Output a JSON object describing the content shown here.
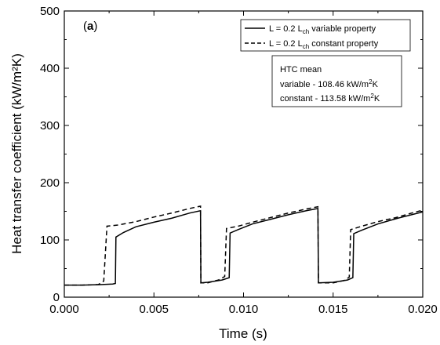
{
  "chart_data": {
    "type": "line",
    "panel_label_open": "(",
    "panel_label_letter": "a",
    "panel_label_close": ")",
    "xlabel": "Time (s)",
    "ylabel": "Heat transfer coefficient (kW/m²K)",
    "xlim": [
      0.0,
      0.02
    ],
    "ylim": [
      0,
      500
    ],
    "xticks": [
      0.0,
      0.005,
      0.01,
      0.015,
      0.02
    ],
    "xtick_labels": [
      "0.000",
      "0.005",
      "0.010",
      "0.015",
      "0.020"
    ],
    "yticks": [
      0,
      100,
      200,
      300,
      400,
      500
    ],
    "ytick_labels": [
      "0",
      "100",
      "200",
      "300",
      "400",
      "500"
    ],
    "grid": false,
    "legend_position": "top-right",
    "legend": [
      {
        "style": "solid",
        "prefix": "L = 0.2 L",
        "sub": "ch",
        "suffix": " variable property"
      },
      {
        "style": "dashed",
        "prefix": "L = 0.2 L",
        "sub": "ch",
        "suffix": " constant property"
      }
    ],
    "annotation": {
      "title": "HTC mean",
      "line1_prefix": "variable - 108.46 kW/m",
      "line1_sup": "2",
      "line1_suffix": "K",
      "line2_prefix": "constant - 113.58 kW/m",
      "line2_sup": "2",
      "line2_suffix": "K"
    },
    "series": [
      {
        "style": "solid",
        "color": "#000000",
        "points": [
          [
            0.0,
            21
          ],
          [
            0.001,
            21
          ],
          [
            0.002,
            22
          ],
          [
            0.0027,
            23
          ],
          [
            0.00285,
            24
          ],
          [
            0.00288,
            105
          ],
          [
            0.0033,
            113
          ],
          [
            0.004,
            123
          ],
          [
            0.005,
            131
          ],
          [
            0.006,
            138
          ],
          [
            0.007,
            147
          ],
          [
            0.0076,
            151
          ],
          [
            0.00762,
            25
          ],
          [
            0.008,
            26
          ],
          [
            0.0088,
            30
          ],
          [
            0.0092,
            34
          ],
          [
            0.00925,
            112
          ],
          [
            0.0097,
            118
          ],
          [
            0.0105,
            128
          ],
          [
            0.0115,
            136
          ],
          [
            0.0125,
            144
          ],
          [
            0.0135,
            151
          ],
          [
            0.01415,
            155
          ],
          [
            0.01418,
            25
          ],
          [
            0.015,
            26
          ],
          [
            0.0158,
            30
          ],
          [
            0.0161,
            34
          ],
          [
            0.01615,
            111
          ],
          [
            0.0166,
            117
          ],
          [
            0.0175,
            128
          ],
          [
            0.0185,
            137
          ],
          [
            0.0195,
            145
          ],
          [
            0.02,
            149
          ]
        ]
      },
      {
        "style": "dashed",
        "color": "#000000",
        "points": [
          [
            0.0,
            21
          ],
          [
            0.001,
            21
          ],
          [
            0.0019,
            22
          ],
          [
            0.0022,
            28
          ],
          [
            0.00238,
            124
          ],
          [
            0.003,
            126
          ],
          [
            0.004,
            132
          ],
          [
            0.005,
            140
          ],
          [
            0.006,
            147
          ],
          [
            0.007,
            155
          ],
          [
            0.0076,
            159
          ],
          [
            0.00762,
            25
          ],
          [
            0.008,
            25
          ],
          [
            0.0086,
            30
          ],
          [
            0.00895,
            36
          ],
          [
            0.00905,
            120
          ],
          [
            0.0097,
            124
          ],
          [
            0.0105,
            131
          ],
          [
            0.0115,
            139
          ],
          [
            0.0125,
            147
          ],
          [
            0.0135,
            154
          ],
          [
            0.01415,
            158
          ],
          [
            0.01418,
            25
          ],
          [
            0.015,
            25
          ],
          [
            0.0156,
            29
          ],
          [
            0.0159,
            35
          ],
          [
            0.01598,
            118
          ],
          [
            0.0166,
            124
          ],
          [
            0.0175,
            132
          ],
          [
            0.0185,
            139
          ],
          [
            0.0195,
            148
          ],
          [
            0.02,
            152
          ]
        ]
      }
    ]
  }
}
